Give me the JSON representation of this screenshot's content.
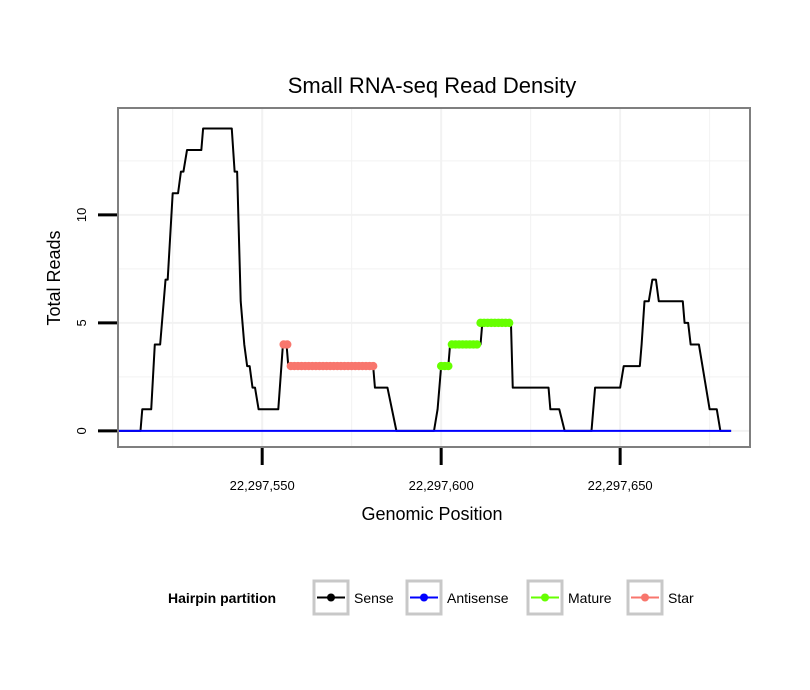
{
  "chart_data": {
    "type": "line",
    "title": "Small RNA-seq Read Density",
    "xlabel": "Genomic Position",
    "ylabel": "Total Reads",
    "xlim": [
      22297510,
      22297686
    ],
    "ylim": [
      -0.7,
      14.9
    ],
    "x_ticks": [
      22297550,
      22297600,
      22297650
    ],
    "x_tick_labels": [
      "22,297,550",
      "22,297,600",
      "22,297,650"
    ],
    "y_ticks": [
      0,
      5,
      10
    ],
    "y_tick_labels": [
      "0",
      "5",
      "10"
    ],
    "grid": true,
    "legend": {
      "title": "Hairpin partition",
      "position": "bottom",
      "entries": [
        {
          "label": "Sense",
          "color": "#000000"
        },
        {
          "label": "Antisense",
          "color": "#0000ff"
        },
        {
          "label": "Mature",
          "color": "#66ff00"
        },
        {
          "label": "Star",
          "color": "#f8766d"
        }
      ]
    },
    "series": [
      {
        "name": "Sense",
        "color": "#000000",
        "kind": "line",
        "points": [
          [
            22297510,
            0
          ],
          [
            22297516,
            0
          ],
          [
            22297516.5,
            1
          ],
          [
            22297519,
            1
          ],
          [
            22297520,
            4
          ],
          [
            22297521.5,
            4
          ],
          [
            22297523,
            7
          ],
          [
            22297523.6,
            7
          ],
          [
            22297525,
            11
          ],
          [
            22297526.5,
            11
          ],
          [
            22297527.3,
            12
          ],
          [
            22297528,
            12
          ],
          [
            22297529,
            13
          ],
          [
            22297533,
            13
          ],
          [
            22297533.5,
            14
          ],
          [
            22297541.5,
            14
          ],
          [
            22297542.3,
            12
          ],
          [
            22297543,
            12
          ],
          [
            22297544,
            6
          ],
          [
            22297545,
            4
          ],
          [
            22297545.8,
            3
          ],
          [
            22297546.5,
            3
          ],
          [
            22297547.3,
            2
          ],
          [
            22297548,
            2
          ],
          [
            22297549,
            1
          ],
          [
            22297554.5,
            1
          ],
          [
            22297555.8,
            4
          ],
          [
            22297556.8,
            4
          ],
          [
            22297557.3,
            3
          ],
          [
            22297581,
            3
          ],
          [
            22297581.5,
            2
          ],
          [
            22297585,
            2
          ],
          [
            22297587.5,
            0
          ],
          [
            22297598,
            0
          ],
          [
            22297599,
            1
          ],
          [
            22297600,
            3
          ],
          [
            22297602,
            3
          ],
          [
            22297602.5,
            4
          ],
          [
            22297611,
            4
          ],
          [
            22297611.5,
            5
          ],
          [
            22297619.5,
            5
          ],
          [
            22297620,
            2
          ],
          [
            22297630,
            2
          ],
          [
            22297630.5,
            1
          ],
          [
            22297633,
            1
          ],
          [
            22297634.5,
            0
          ],
          [
            22297642,
            0
          ],
          [
            22297643,
            2
          ],
          [
            22297650,
            2
          ],
          [
            22297651,
            3
          ],
          [
            22297655.5,
            3
          ],
          [
            22297656,
            4
          ],
          [
            22297656.8,
            6
          ],
          [
            22297658,
            6
          ],
          [
            22297659,
            7
          ],
          [
            22297660,
            7
          ],
          [
            22297660.8,
            6
          ],
          [
            22297667.5,
            6
          ],
          [
            22297668,
            5
          ],
          [
            22297669,
            5
          ],
          [
            22297669.7,
            4
          ],
          [
            22297672,
            4
          ],
          [
            22297674,
            2
          ],
          [
            22297675,
            1
          ],
          [
            22297677,
            1
          ],
          [
            22297678,
            0
          ],
          [
            22297681,
            0
          ]
        ]
      },
      {
        "name": "Antisense",
        "color": "#0000ff",
        "kind": "line",
        "points": [
          [
            22297510,
            0
          ],
          [
            22297681,
            0
          ]
        ]
      },
      {
        "name": "Mature",
        "color": "#66ff00",
        "kind": "points",
        "points": [
          [
            22297600,
            3
          ],
          [
            22297601,
            3
          ],
          [
            22297602,
            3
          ],
          [
            22297603,
            4
          ],
          [
            22297604,
            4
          ],
          [
            22297605,
            4
          ],
          [
            22297606,
            4
          ],
          [
            22297607,
            4
          ],
          [
            22297608,
            4
          ],
          [
            22297609,
            4
          ],
          [
            22297610,
            4
          ],
          [
            22297611,
            5
          ],
          [
            22297612,
            5
          ],
          [
            22297613,
            5
          ],
          [
            22297614,
            5
          ],
          [
            22297615,
            5
          ],
          [
            22297616,
            5
          ],
          [
            22297617,
            5
          ],
          [
            22297618,
            5
          ],
          [
            22297619,
            5
          ]
        ]
      },
      {
        "name": "Star",
        "color": "#f8766d",
        "kind": "points",
        "points": [
          [
            22297556,
            4
          ],
          [
            22297557,
            4
          ],
          [
            22297558,
            3
          ],
          [
            22297559,
            3
          ],
          [
            22297560,
            3
          ],
          [
            22297561,
            3
          ],
          [
            22297562,
            3
          ],
          [
            22297563,
            3
          ],
          [
            22297564,
            3
          ],
          [
            22297565,
            3
          ],
          [
            22297566,
            3
          ],
          [
            22297567,
            3
          ],
          [
            22297568,
            3
          ],
          [
            22297569,
            3
          ],
          [
            22297570,
            3
          ],
          [
            22297571,
            3
          ],
          [
            22297572,
            3
          ],
          [
            22297573,
            3
          ],
          [
            22297574,
            3
          ],
          [
            22297575,
            3
          ],
          [
            22297576,
            3
          ],
          [
            22297577,
            3
          ],
          [
            22297578,
            3
          ],
          [
            22297579,
            3
          ],
          [
            22297580,
            3
          ],
          [
            22297581,
            3
          ]
        ]
      }
    ]
  }
}
